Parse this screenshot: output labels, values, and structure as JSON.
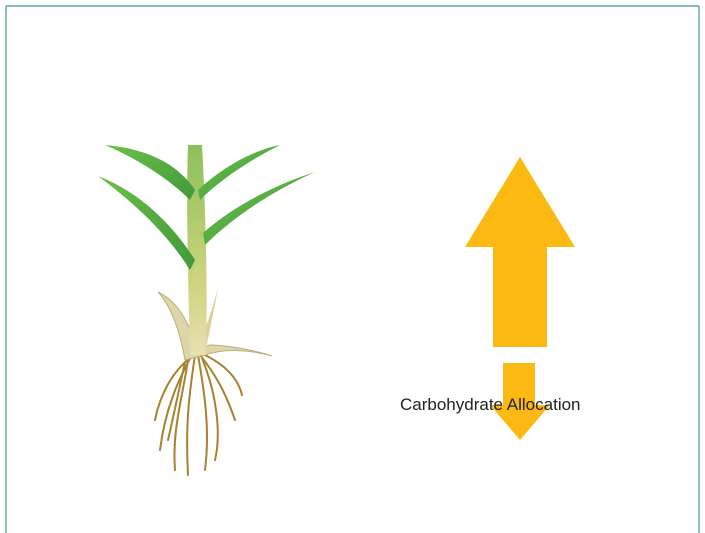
{
  "label": "Carbohydrate Allocation"
}
